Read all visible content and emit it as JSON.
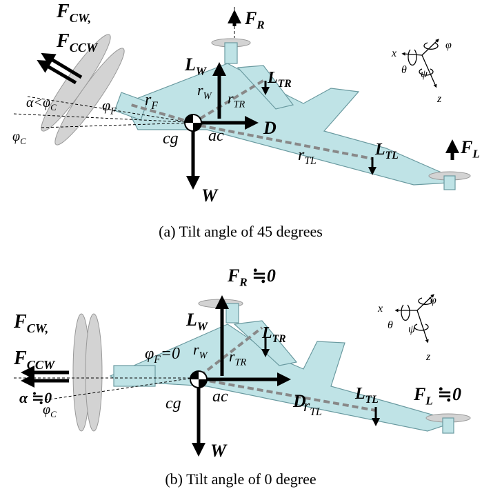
{
  "panels": [
    {
      "caption": "(a) Tilt angle of 45 degrees",
      "labels": [
        {
          "base": "F",
          "sub": "CW,"
        },
        {
          "base": "F",
          "sub": "CCW"
        },
        {
          "base": "F",
          "sub": "R"
        },
        {
          "base": "L",
          "sub": "W"
        },
        {
          "base": "L",
          "sub": "TR"
        },
        {
          "base": "r",
          "sub": "W"
        },
        {
          "base": "r",
          "sub": "TR"
        },
        {
          "base": "r",
          "sub": "F"
        },
        {
          "base": "φ",
          "sub": "F"
        },
        {
          "base": "α<φ",
          "sub": "C"
        },
        {
          "base": "φ",
          "sub": "C"
        },
        {
          "base": "cg"
        },
        {
          "base": "ac"
        },
        {
          "base": "D"
        },
        {
          "base": "r",
          "sub": "TL"
        },
        {
          "base": "L",
          "sub": "TL"
        },
        {
          "base": "W"
        },
        {
          "base": "F",
          "sub": "L"
        },
        {
          "base": "x"
        },
        {
          "base": "θ"
        },
        {
          "base": "ψ"
        },
        {
          "base": "φ"
        },
        {
          "base": "z"
        }
      ]
    },
    {
      "caption": "(b) Tilt angle of 0 degree",
      "labels": [
        {
          "base": "F",
          "sub": "R",
          "tail": " ≒0"
        },
        {
          "base": "L",
          "sub": "W"
        },
        {
          "base": "L",
          "sub": "TR"
        },
        {
          "base": "r",
          "sub": "W"
        },
        {
          "base": "r",
          "sub": "TR"
        },
        {
          "base": "φ",
          "sub": "F",
          "tail": "=0"
        },
        {
          "base": "F",
          "sub": "CW,"
        },
        {
          "base": "F",
          "sub": "CCW"
        },
        {
          "base": "α ≒0"
        },
        {
          "base": "φ",
          "sub": "C"
        },
        {
          "base": "cg"
        },
        {
          "base": "ac"
        },
        {
          "base": "D"
        },
        {
          "base": "L",
          "sub": "TL"
        },
        {
          "base": "r",
          "sub": "TL"
        },
        {
          "base": "F",
          "sub": "L",
          "tail": " ≒0"
        },
        {
          "base": "W"
        },
        {
          "base": "x"
        },
        {
          "base": "θ"
        },
        {
          "base": "ψ"
        },
        {
          "base": "φ"
        },
        {
          "base": "z"
        }
      ]
    }
  ]
}
